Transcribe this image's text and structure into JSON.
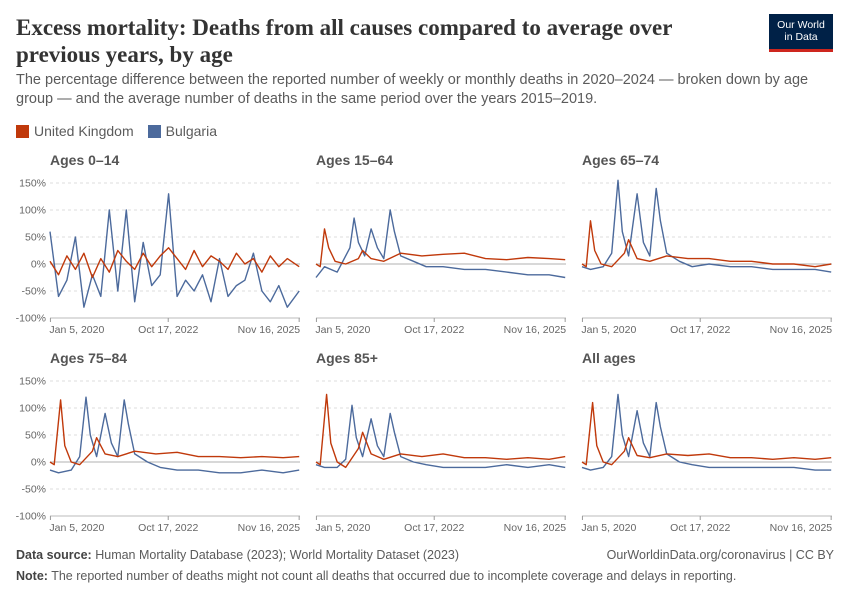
{
  "header": {
    "title": "Excess mortality: Deaths from all causes compared to average over previous years, by age",
    "subtitle": "The percentage difference between the reported number of weekly or monthly deaths in 2020–2024 — broken down by age group — and the average number of deaths in the same period over the years 2015–2019.",
    "logo_line1": "Our World",
    "logo_line2": "in Data"
  },
  "colors": {
    "uk": "#c0390b",
    "bg": "#4c6a9c",
    "grid": "#dddddd",
    "zero": "#999999"
  },
  "chart_data": {
    "type": "line",
    "legend": [
      {
        "name": "United Kingdom",
        "color": "#c0390b"
      },
      {
        "name": "Bulgaria",
        "color": "#4c6a9c"
      }
    ],
    "ylim": [
      -100,
      150
    ],
    "yticks": [
      -100,
      -50,
      0,
      50,
      100,
      150
    ],
    "ytick_labels": [
      "-100%",
      "-50%",
      "0%",
      "50%",
      "100%",
      "150%"
    ],
    "xlim": [
      2020.0,
      2025.9
    ],
    "xticks": [
      2020.01,
      2022.79,
      2025.88
    ],
    "xtick_labels": [
      "Jan 5, 2020",
      "Oct 17, 2022",
      "Nov 16, 2025"
    ],
    "panels": [
      {
        "title": "Ages 0–14",
        "series": [
          {
            "name": "United Kingdom",
            "x": [
              2020.0,
              2020.2,
              2020.4,
              2020.6,
              2020.8,
              2021.0,
              2021.2,
              2021.4,
              2021.6,
              2021.8,
              2022.0,
              2022.2,
              2022.4,
              2022.6,
              2022.8,
              2023.0,
              2023.2,
              2023.4,
              2023.6,
              2023.8,
              2024.0,
              2024.2,
              2024.4,
              2024.6,
              2024.8,
              2025.0,
              2025.2,
              2025.4,
              2025.6,
              2025.88
            ],
            "y": [
              5,
              -20,
              15,
              -10,
              20,
              -25,
              10,
              -15,
              25,
              5,
              -10,
              20,
              -5,
              15,
              30,
              10,
              -10,
              25,
              -5,
              15,
              5,
              -10,
              20,
              0,
              10,
              -15,
              15,
              -5,
              10,
              -5
            ]
          },
          {
            "name": "Bulgaria",
            "x": [
              2020.0,
              2020.2,
              2020.4,
              2020.6,
              2020.8,
              2021.0,
              2021.2,
              2021.4,
              2021.6,
              2021.8,
              2022.0,
              2022.2,
              2022.4,
              2022.6,
              2022.8,
              2023.0,
              2023.2,
              2023.4,
              2023.6,
              2023.8,
              2024.0,
              2024.2,
              2024.4,
              2024.6,
              2024.8,
              2025.0,
              2025.2,
              2025.4,
              2025.6,
              2025.88
            ],
            "y": [
              60,
              -60,
              -30,
              50,
              -80,
              -20,
              -60,
              100,
              -50,
              100,
              -70,
              40,
              -40,
              -20,
              130,
              -60,
              -30,
              -50,
              -20,
              -70,
              10,
              -60,
              -40,
              -30,
              20,
              -50,
              -70,
              -40,
              -80,
              -50
            ]
          }
        ]
      },
      {
        "title": "Ages 15–64",
        "series": [
          {
            "name": "United Kingdom",
            "x": [
              2020.0,
              2020.1,
              2020.2,
              2020.3,
              2020.45,
              2020.7,
              2021.0,
              2021.1,
              2021.3,
              2021.6,
              2022.0,
              2022.5,
              2023.0,
              2023.5,
              2024.0,
              2024.5,
              2025.0,
              2025.5,
              2025.88
            ],
            "y": [
              0,
              -5,
              65,
              30,
              5,
              0,
              10,
              25,
              10,
              5,
              20,
              15,
              18,
              20,
              10,
              8,
              12,
              10,
              8
            ]
          },
          {
            "name": "Bulgaria",
            "x": [
              2020.0,
              2020.2,
              2020.5,
              2020.8,
              2020.9,
              2021.0,
              2021.15,
              2021.3,
              2021.45,
              2021.6,
              2021.75,
              2021.85,
              2022.0,
              2022.3,
              2022.6,
              2023.0,
              2023.5,
              2024.0,
              2024.5,
              2025.0,
              2025.5,
              2025.88
            ],
            "y": [
              -25,
              -5,
              -15,
              30,
              85,
              40,
              15,
              65,
              30,
              10,
              100,
              60,
              15,
              5,
              -5,
              -5,
              -10,
              -10,
              -15,
              -20,
              -20,
              -25
            ]
          }
        ]
      },
      {
        "title": "Ages 65–74",
        "series": [
          {
            "name": "United Kingdom",
            "x": [
              2020.0,
              2020.1,
              2020.2,
              2020.3,
              2020.45,
              2020.7,
              2021.0,
              2021.1,
              2021.3,
              2021.6,
              2022.0,
              2022.5,
              2023.0,
              2023.5,
              2024.0,
              2024.5,
              2025.0,
              2025.5,
              2025.88
            ],
            "y": [
              0,
              -5,
              80,
              25,
              0,
              -5,
              20,
              45,
              10,
              5,
              15,
              10,
              10,
              5,
              5,
              0,
              0,
              -5,
              0
            ]
          },
          {
            "name": "Bulgaria",
            "x": [
              2020.0,
              2020.2,
              2020.5,
              2020.7,
              2020.85,
              2020.95,
              2021.1,
              2021.3,
              2021.45,
              2021.6,
              2021.75,
              2021.85,
              2022.0,
              2022.3,
              2022.6,
              2023.0,
              2023.5,
              2024.0,
              2024.5,
              2025.0,
              2025.5,
              2025.88
            ],
            "y": [
              -5,
              -10,
              -5,
              20,
              155,
              60,
              15,
              130,
              40,
              15,
              140,
              80,
              20,
              5,
              -5,
              0,
              -5,
              -5,
              -10,
              -10,
              -10,
              -15
            ]
          }
        ]
      },
      {
        "title": "Ages 75–84",
        "series": [
          {
            "name": "United Kingdom",
            "x": [
              2020.0,
              2020.1,
              2020.25,
              2020.35,
              2020.5,
              2020.7,
              2021.0,
              2021.1,
              2021.3,
              2021.6,
              2022.0,
              2022.5,
              2023.0,
              2023.5,
              2024.0,
              2024.5,
              2025.0,
              2025.5,
              2025.88
            ],
            "y": [
              0,
              -5,
              115,
              30,
              0,
              -5,
              20,
              45,
              15,
              10,
              20,
              15,
              18,
              10,
              10,
              8,
              10,
              8,
              10
            ]
          },
          {
            "name": "Bulgaria",
            "x": [
              2020.0,
              2020.2,
              2020.5,
              2020.7,
              2020.85,
              2020.95,
              2021.1,
              2021.3,
              2021.45,
              2021.6,
              2021.75,
              2021.85,
              2022.0,
              2022.3,
              2022.6,
              2023.0,
              2023.5,
              2024.0,
              2024.5,
              2025.0,
              2025.5,
              2025.88
            ],
            "y": [
              -15,
              -20,
              -15,
              10,
              120,
              50,
              10,
              90,
              35,
              10,
              115,
              70,
              15,
              0,
              -10,
              -15,
              -15,
              -20,
              -20,
              -15,
              -20,
              -15
            ]
          }
        ]
      },
      {
        "title": "Ages 85+",
        "series": [
          {
            "name": "United Kingdom",
            "x": [
              2020.0,
              2020.1,
              2020.25,
              2020.35,
              2020.5,
              2020.7,
              2021.0,
              2021.1,
              2021.3,
              2021.6,
              2022.0,
              2022.5,
              2023.0,
              2023.5,
              2024.0,
              2024.5,
              2025.0,
              2025.5,
              2025.88
            ],
            "y": [
              0,
              -5,
              125,
              35,
              0,
              -10,
              25,
              55,
              15,
              5,
              15,
              10,
              15,
              8,
              8,
              5,
              8,
              5,
              10
            ]
          },
          {
            "name": "Bulgaria",
            "x": [
              2020.0,
              2020.2,
              2020.5,
              2020.7,
              2020.85,
              2020.95,
              2021.1,
              2021.3,
              2021.45,
              2021.6,
              2021.75,
              2021.85,
              2022.0,
              2022.3,
              2022.6,
              2023.0,
              2023.5,
              2024.0,
              2024.5,
              2025.0,
              2025.5,
              2025.88
            ],
            "y": [
              -5,
              -10,
              -10,
              5,
              105,
              45,
              10,
              80,
              30,
              10,
              90,
              55,
              10,
              0,
              -5,
              -10,
              -10,
              -10,
              -5,
              -10,
              -5,
              -10
            ]
          }
        ]
      },
      {
        "title": "All ages",
        "series": [
          {
            "name": "United Kingdom",
            "x": [
              2020.0,
              2020.1,
              2020.25,
              2020.35,
              2020.5,
              2020.7,
              2021.0,
              2021.1,
              2021.3,
              2021.6,
              2022.0,
              2022.5,
              2023.0,
              2023.5,
              2024.0,
              2024.5,
              2025.0,
              2025.5,
              2025.88
            ],
            "y": [
              0,
              -5,
              110,
              30,
              0,
              -5,
              20,
              45,
              12,
              8,
              15,
              12,
              15,
              8,
              8,
              5,
              8,
              5,
              8
            ]
          },
          {
            "name": "Bulgaria",
            "x": [
              2020.0,
              2020.2,
              2020.5,
              2020.7,
              2020.85,
              2020.95,
              2021.1,
              2021.3,
              2021.45,
              2021.6,
              2021.75,
              2021.85,
              2022.0,
              2022.3,
              2022.6,
              2023.0,
              2023.5,
              2024.0,
              2024.5,
              2025.0,
              2025.5,
              2025.88
            ],
            "y": [
              -10,
              -15,
              -10,
              10,
              125,
              50,
              10,
              95,
              35,
              10,
              110,
              65,
              15,
              0,
              -5,
              -10,
              -10,
              -10,
              -10,
              -10,
              -15,
              -15
            ]
          }
        ]
      }
    ]
  },
  "footer": {
    "source_label": "Data source:",
    "source_text": "Human Mortality Database (2023); World Mortality Dataset (2023)",
    "url": "OurWorldinData.org/coronavirus | CC BY",
    "note_label": "Note:",
    "note_text": "The reported number of deaths might not count all deaths that occurred due to incomplete coverage and delays in reporting."
  }
}
